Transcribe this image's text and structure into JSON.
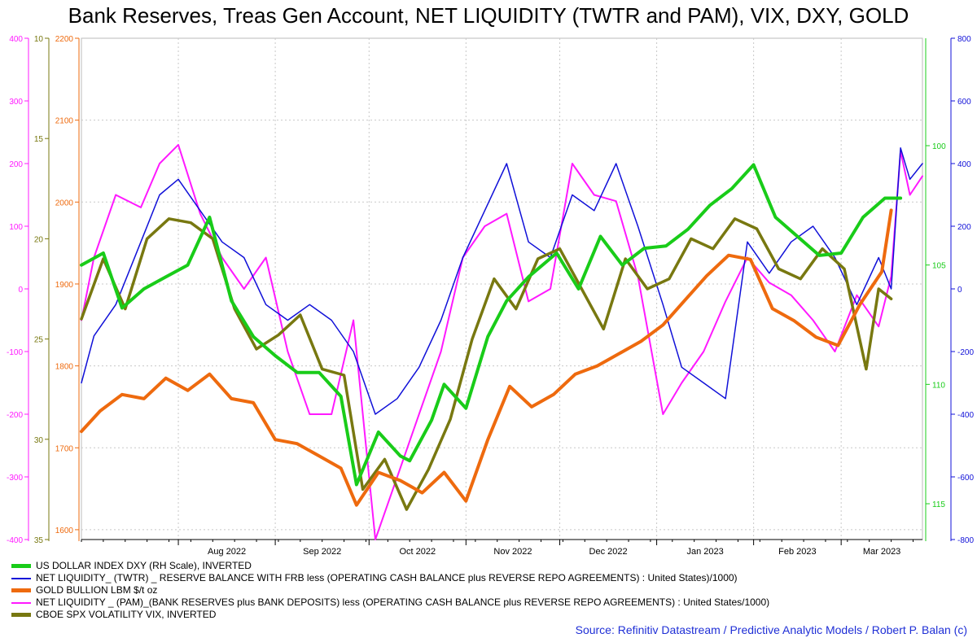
{
  "title": "Bank Reserves, Treas Gen Account, NET LIQUIDITY (TWTR and PAM), VIX, DXY, GOLD",
  "source": "Source: Refinitiv Datastream / Predictive Analytic Models / Robert P. Balan (c)",
  "colors": {
    "dxy": "#19cc19",
    "twtr": "#1010d8",
    "gold": "#ee6a0e",
    "pam": "#ff19ff",
    "vix": "#787810",
    "axis_magenta": "#ff19ff",
    "axis_olive": "#787810",
    "axis_orange": "#ee6a0e",
    "axis_green": "#19cc19",
    "axis_blue": "#1010d8",
    "grid": "#c8c8c8"
  },
  "chart_data": {
    "type": "line",
    "title": "Bank Reserves, Treas Gen Account, NET LIQUIDITY (TWTR and PAM), VIX, DXY, GOLD",
    "x_ticks": [
      "Aug 2022",
      "Sep 2022",
      "Oct 2022",
      "Nov 2022",
      "Dec 2022",
      "Jan 2023",
      "Feb 2023",
      "Mar 2023"
    ],
    "x_range": [
      "2022-07-01",
      "2023-03-27"
    ],
    "grid": true,
    "legend_position": "bottom-left",
    "axes": [
      {
        "id": "pam",
        "side": "left",
        "ticks": [
          400,
          300,
          200,
          100,
          0,
          -100,
          -200,
          -300,
          -400
        ],
        "range": [
          -400,
          400
        ]
      },
      {
        "id": "vix",
        "side": "left",
        "inverted": true,
        "ticks": [
          10,
          15,
          20,
          25,
          30,
          35
        ],
        "range": [
          10,
          35
        ]
      },
      {
        "id": "gold",
        "side": "left",
        "ticks": [
          2200,
          2100,
          2000,
          1900,
          1800,
          1700,
          1600
        ],
        "range": [
          1588,
          2200
        ]
      },
      {
        "id": "dxy",
        "side": "right",
        "inverted": true,
        "ticks": [
          100,
          105,
          110,
          115
        ],
        "range": [
          95.5,
          116.5
        ]
      },
      {
        "id": "twtr",
        "side": "right",
        "ticks": [
          800,
          600,
          400,
          200,
          0,
          -200,
          -400,
          -600,
          -800
        ],
        "range": [
          -800,
          800
        ]
      }
    ],
    "series": [
      {
        "name": "US DOLLAR INDEX DXY (RH Scale), INVERTED",
        "key": "dxy",
        "axis": "dxy",
        "width": 4,
        "x": [
          "2022-07-01",
          "2022-07-08",
          "2022-07-14",
          "2022-07-21",
          "2022-07-28",
          "2022-08-04",
          "2022-08-11",
          "2022-08-18",
          "2022-08-25",
          "2022-09-01",
          "2022-09-08",
          "2022-09-15",
          "2022-09-22",
          "2022-09-27",
          "2022-10-04",
          "2022-10-11",
          "2022-10-14",
          "2022-10-21",
          "2022-10-25",
          "2022-11-01",
          "2022-11-08",
          "2022-11-14",
          "2022-11-21",
          "2022-11-30",
          "2022-12-07",
          "2022-12-14",
          "2022-12-21",
          "2022-12-28",
          "2023-01-04",
          "2023-01-11",
          "2023-01-18",
          "2023-01-25",
          "2023-02-01",
          "2023-02-08",
          "2023-02-15",
          "2023-02-22",
          "2023-03-01",
          "2023-03-08",
          "2023-03-15",
          "2023-03-20"
        ],
        "y": [
          105.0,
          104.5,
          106.8,
          106.0,
          105.5,
          105.0,
          103.0,
          106.5,
          108.0,
          108.8,
          109.5,
          109.5,
          110.5,
          114.2,
          112.0,
          113.0,
          113.2,
          111.5,
          110.0,
          111.0,
          108.0,
          106.5,
          105.5,
          104.5,
          106.0,
          103.8,
          105.0,
          104.3,
          104.2,
          103.5,
          102.5,
          101.8,
          100.8,
          103.0,
          103.8,
          104.6,
          104.5,
          103.0,
          102.2,
          102.2
        ]
      },
      {
        "name": "NET LIQUIDITY_ (TWTR) _ RESERVE BALANCE WITH FRB less (OPERATING CASH BALANCE plus REVERSE REPO AGREEMENTS) : United States)/1000)",
        "key": "twtr",
        "axis": "twtr",
        "width": 1.5,
        "x": [
          "2022-07-01",
          "2022-07-05",
          "2022-07-12",
          "2022-07-20",
          "2022-07-26",
          "2022-08-01",
          "2022-08-08",
          "2022-08-15",
          "2022-08-22",
          "2022-08-29",
          "2022-09-05",
          "2022-09-12",
          "2022-09-19",
          "2022-09-26",
          "2022-10-03",
          "2022-10-10",
          "2022-10-17",
          "2022-10-24",
          "2022-10-31",
          "2022-11-07",
          "2022-11-14",
          "2022-11-21",
          "2022-11-28",
          "2022-12-05",
          "2022-12-12",
          "2022-12-19",
          "2022-12-26",
          "2023-01-03",
          "2023-01-09",
          "2023-01-16",
          "2023-01-23",
          "2023-01-30",
          "2023-02-06",
          "2023-02-13",
          "2023-02-20",
          "2023-02-27",
          "2023-03-06",
          "2023-03-13",
          "2023-03-17",
          "2023-03-20",
          "2023-03-23",
          "2023-03-27"
        ],
        "y": [
          -300,
          -150,
          -50,
          150,
          300,
          350,
          250,
          150,
          100,
          -50,
          -100,
          -50,
          -100,
          -200,
          -400,
          -350,
          -250,
          -100,
          100,
          250,
          400,
          150,
          100,
          300,
          250,
          400,
          200,
          -50,
          -250,
          -300,
          -350,
          150,
          50,
          150,
          200,
          100,
          -50,
          100,
          0,
          450,
          350,
          400
        ]
      },
      {
        "name": "GOLD BULLION LBM $/t oz",
        "key": "gold",
        "axis": "gold",
        "width": 4,
        "x": [
          "2022-07-01",
          "2022-07-07",
          "2022-07-14",
          "2022-07-21",
          "2022-07-28",
          "2022-08-04",
          "2022-08-11",
          "2022-08-18",
          "2022-08-25",
          "2022-09-01",
          "2022-09-08",
          "2022-09-15",
          "2022-09-22",
          "2022-09-27",
          "2022-10-04",
          "2022-10-11",
          "2022-10-18",
          "2022-10-25",
          "2022-11-01",
          "2022-11-08",
          "2022-11-15",
          "2022-11-22",
          "2022-11-29",
          "2022-12-06",
          "2022-12-13",
          "2022-12-20",
          "2022-12-27",
          "2023-01-03",
          "2023-01-10",
          "2023-01-17",
          "2023-01-24",
          "2023-01-31",
          "2023-02-07",
          "2023-02-14",
          "2023-02-21",
          "2023-02-28",
          "2023-03-07",
          "2023-03-14",
          "2023-03-17"
        ],
        "y": [
          1720,
          1745,
          1765,
          1760,
          1785,
          1770,
          1790,
          1760,
          1755,
          1710,
          1705,
          1690,
          1675,
          1630,
          1670,
          1660,
          1645,
          1670,
          1635,
          1710,
          1775,
          1750,
          1765,
          1790,
          1800,
          1815,
          1830,
          1850,
          1880,
          1910,
          1935,
          1930,
          1870,
          1855,
          1835,
          1825,
          1875,
          1915,
          1990
        ]
      },
      {
        "name": "NET LIQUIDITY _ (PAM)_(BANK RESERVES plus BANK DEPOSITS) less (OPERATING CASH BALANCE plus REVERSE REPO AGREEMENTS) : United States/1000)",
        "key": "pam",
        "axis": "pam",
        "width": 2,
        "x": [
          "2022-07-01",
          "2022-07-05",
          "2022-07-12",
          "2022-07-20",
          "2022-07-26",
          "2022-08-01",
          "2022-08-08",
          "2022-08-15",
          "2022-08-22",
          "2022-08-29",
          "2022-09-05",
          "2022-09-12",
          "2022-09-19",
          "2022-09-26",
          "2022-10-03",
          "2022-10-10",
          "2022-10-17",
          "2022-10-24",
          "2022-10-31",
          "2022-11-07",
          "2022-11-14",
          "2022-11-21",
          "2022-11-28",
          "2022-12-05",
          "2022-12-12",
          "2022-12-19",
          "2022-12-26",
          "2023-01-03",
          "2023-01-09",
          "2023-01-16",
          "2023-01-23",
          "2023-01-30",
          "2023-02-06",
          "2023-02-13",
          "2023-02-20",
          "2023-02-27",
          "2023-03-06",
          "2023-03-13",
          "2023-03-17",
          "2023-03-20",
          "2023-03-23",
          "2023-03-27"
        ],
        "y": [
          -50,
          50,
          150,
          130,
          200,
          230,
          120,
          50,
          0,
          50,
          -100,
          -200,
          -200,
          -50,
          -400,
          -300,
          -200,
          -100,
          50,
          100,
          120,
          -20,
          0,
          200,
          150,
          140,
          20,
          -200,
          -150,
          -100,
          -20,
          50,
          10,
          -10,
          -50,
          -100,
          -10,
          -60,
          20,
          220,
          150,
          180
        ]
      },
      {
        "name": "CBOE SPX VOLATILITY VIX, INVERTED",
        "key": "vix",
        "axis": "vix",
        "width": 3.5,
        "x": [
          "2022-07-01",
          "2022-07-08",
          "2022-07-15",
          "2022-07-22",
          "2022-07-29",
          "2022-08-05",
          "2022-08-12",
          "2022-08-19",
          "2022-08-26",
          "2022-09-02",
          "2022-09-09",
          "2022-09-16",
          "2022-09-23",
          "2022-09-29",
          "2022-10-06",
          "2022-10-13",
          "2022-10-20",
          "2022-10-27",
          "2022-11-03",
          "2022-11-10",
          "2022-11-17",
          "2022-11-24",
          "2022-12-01",
          "2022-12-08",
          "2022-12-15",
          "2022-12-22",
          "2022-12-29",
          "2023-01-05",
          "2023-01-12",
          "2023-01-19",
          "2023-01-26",
          "2023-02-02",
          "2023-02-09",
          "2023-02-16",
          "2023-02-23",
          "2023-03-02",
          "2023-03-09",
          "2023-03-13",
          "2023-03-17"
        ],
        "y": [
          24,
          21,
          23.5,
          20,
          19,
          19.2,
          20,
          23.5,
          25.5,
          24.8,
          23.8,
          26.5,
          26.8,
          32.5,
          31.0,
          33.5,
          31.5,
          29.0,
          25.0,
          22.0,
          23.5,
          21.0,
          20.5,
          22.5,
          24.5,
          21.0,
          22.5,
          22.0,
          20.0,
          20.5,
          19.0,
          19.5,
          21.5,
          22.0,
          20.5,
          21.5,
          26.5,
          22.5,
          23.0
        ]
      }
    ]
  }
}
